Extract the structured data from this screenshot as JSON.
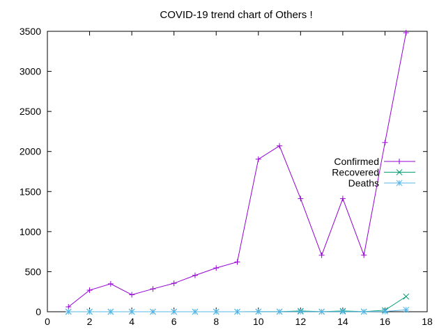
{
  "chart_data": {
    "type": "line",
    "title": "COVID-19 trend chart of Others !",
    "xlabel": "",
    "ylabel": "",
    "xlim": [
      0,
      18
    ],
    "ylim": [
      0,
      3500
    ],
    "xticks": [
      0,
      2,
      4,
      6,
      8,
      10,
      12,
      14,
      16,
      18
    ],
    "yticks": [
      0,
      500,
      1000,
      1500,
      2000,
      2500,
      3000,
      3500
    ],
    "grid": false,
    "legend_position": "right",
    "x": [
      1,
      2,
      3,
      4,
      5,
      6,
      7,
      8,
      9,
      10,
      11,
      12,
      13,
      14,
      15,
      16,
      17
    ],
    "series": [
      {
        "name": "Confirmed",
        "color": "#9400d3",
        "marker": "plus",
        "values": [
          61,
          269,
          348,
          212,
          285,
          355,
          454,
          546,
          621,
          1904,
          2070,
          1412,
          705,
          1412,
          706,
          2112,
          3482
        ]
      },
      {
        "name": "Recovered",
        "color": "#009e73",
        "marker": "cross",
        "values": [
          0,
          0,
          0,
          0,
          0,
          0,
          0,
          0,
          0,
          1,
          1,
          10,
          1,
          10,
          1,
          19,
          190
        ]
      },
      {
        "name": "Deaths",
        "color": "#56b4e9",
        "marker": "star",
        "values": [
          0,
          0,
          0,
          0,
          0,
          0,
          0,
          0,
          0,
          1,
          1,
          1,
          1,
          1,
          1,
          3,
          24
        ]
      }
    ]
  }
}
